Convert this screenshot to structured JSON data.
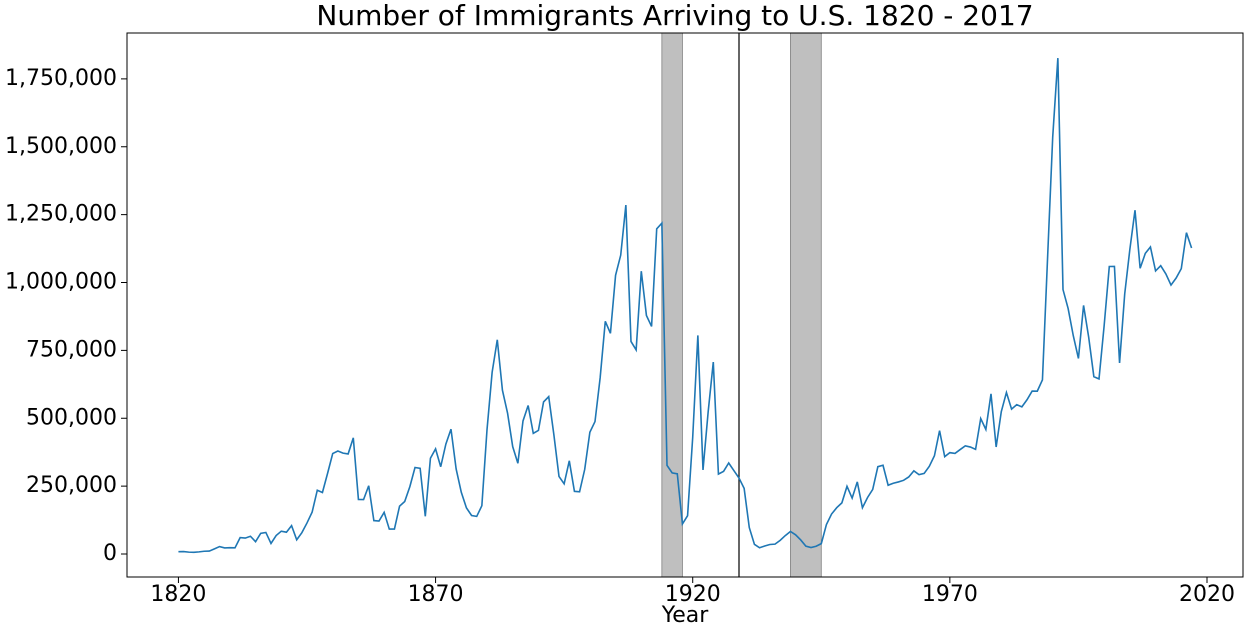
{
  "chart_data": {
    "type": "line",
    "title": "Number of Immigrants Arriving to U.S. 1820 - 2017",
    "xlabel": "Year",
    "color": "#1f77b4",
    "x": [
      1820,
      1821,
      1822,
      1823,
      1824,
      1825,
      1826,
      1827,
      1828,
      1829,
      1830,
      1831,
      1832,
      1833,
      1834,
      1835,
      1836,
      1837,
      1838,
      1839,
      1840,
      1841,
      1842,
      1843,
      1844,
      1845,
      1846,
      1847,
      1848,
      1849,
      1850,
      1851,
      1852,
      1853,
      1854,
      1855,
      1856,
      1857,
      1858,
      1859,
      1860,
      1861,
      1862,
      1863,
      1864,
      1865,
      1866,
      1867,
      1868,
      1869,
      1870,
      1871,
      1872,
      1873,
      1874,
      1875,
      1876,
      1877,
      1878,
      1879,
      1880,
      1881,
      1882,
      1883,
      1884,
      1885,
      1886,
      1887,
      1888,
      1889,
      1890,
      1891,
      1892,
      1893,
      1894,
      1895,
      1896,
      1897,
      1898,
      1899,
      1900,
      1901,
      1902,
      1903,
      1904,
      1905,
      1906,
      1907,
      1908,
      1909,
      1910,
      1911,
      1912,
      1913,
      1914,
      1915,
      1916,
      1917,
      1918,
      1919,
      1920,
      1921,
      1922,
      1923,
      1924,
      1925,
      1926,
      1927,
      1928,
      1929,
      1930,
      1931,
      1932,
      1933,
      1934,
      1935,
      1936,
      1937,
      1938,
      1939,
      1940,
      1941,
      1942,
      1943,
      1944,
      1945,
      1946,
      1947,
      1948,
      1949,
      1950,
      1951,
      1952,
      1953,
      1954,
      1955,
      1956,
      1957,
      1958,
      1959,
      1960,
      1961,
      1962,
      1963,
      1964,
      1965,
      1966,
      1967,
      1968,
      1969,
      1970,
      1971,
      1972,
      1973,
      1974,
      1975,
      1976,
      1977,
      1978,
      1979,
      1980,
      1981,
      1982,
      1983,
      1984,
      1985,
      1986,
      1987,
      1988,
      1989,
      1990,
      1991,
      1992,
      1993,
      1994,
      1995,
      1996,
      1997,
      1998,
      1999,
      2000,
      2001,
      2002,
      2003,
      2004,
      2005,
      2006,
      2007,
      2008,
      2009,
      2010,
      2011,
      2012,
      2013,
      2014,
      2015,
      2016,
      2017
    ],
    "values": [
      8385,
      9127,
      6911,
      6354,
      7912,
      10199,
      10837,
      18875,
      27382,
      22520,
      23322,
      22633,
      60482,
      58640,
      65365,
      45374,
      76242,
      79340,
      38914,
      68069,
      84066,
      80289,
      104565,
      52496,
      78615,
      114371,
      154416,
      234968,
      226527,
      297024,
      369980,
      379466,
      371603,
      368645,
      427833,
      200877,
      200436,
      251306,
      123126,
      121282,
      153640,
      91918,
      91985,
      176282,
      193418,
      248120,
      318568,
      315722,
      138840,
      352768,
      387203,
      321350,
      404806,
      459803,
      313339,
      227498,
      169986,
      141857,
      138469,
      177826,
      457257,
      669431,
      788992,
      603322,
      518592,
      395346,
      334203,
      490109,
      546889,
      444427,
      455302,
      560319,
      579663,
      439730,
      285631,
      258536,
      343267,
      230832,
      229299,
      311715,
      448572,
      487918,
      648743,
      857046,
      812870,
      1026499,
      1100735,
      1285349,
      782870,
      751786,
      1041570,
      878587,
      838172,
      1197892,
      1218480,
      326700,
      298826,
      295403,
      110618,
      141132,
      430001,
      805228,
      309556,
      522919,
      706896,
      294314,
      304488,
      335175,
      307255,
      279678,
      241700,
      97139,
      35576,
      23068,
      29470,
      34956,
      36329,
      50244,
      67895,
      82998,
      70756,
      51776,
      28781,
      23725,
      28551,
      38119,
      108721,
      147292,
      170570,
      188317,
      249187,
      205717,
      265520,
      170434,
      208177,
      237790,
      321625,
      326867,
      253265,
      260686,
      265398,
      271344,
      283763,
      306260,
      292248,
      296697,
      323040,
      361972,
      454448,
      358579,
      373326,
      370478,
      384685,
      398515,
      393919,
      385378,
      499093,
      458755,
      589810,
      394244,
      524295,
      595014,
      533624,
      550052,
      541811,
      568149,
      600027,
      599889,
      641346,
      1090172,
      1535872,
      1826595,
      973977,
      903916,
      803993,
      720177,
      915560,
      797847,
      653206,
      644787,
      841002,
      1058902,
      1059356,
      703542,
      957883,
      1122257,
      1266129,
      1052415,
      1107126,
      1130818,
      1042625,
      1062040,
      1031631,
      990553,
      1016518,
      1051031,
      1183505,
      1127167
    ],
    "xlim": [
      1810,
      2027
    ],
    "xticks": [
      1820,
      1870,
      1920,
      1970,
      2020
    ],
    "ylim": [
      -84700,
      1919000
    ],
    "yticks": [
      0,
      {
        "value": 250000,
        "label": "250,000"
      },
      {
        "value": 500000,
        "label": "500,000"
      },
      {
        "value": 750000,
        "label": "750,000"
      },
      {
        "value": 1000000,
        "label": "1,000,000"
      },
      {
        "value": 1250000,
        "label": "1,250,000"
      },
      {
        "value": 1500000,
        "label": "1,500,000"
      },
      {
        "value": 1750000,
        "label": "1,750,000"
      }
    ],
    "shaded_spans": [
      [
        1914,
        1918
      ],
      [
        1939,
        1945
      ]
    ],
    "span_color": "#bfbfbf",
    "vlines": [
      1929
    ],
    "vline_color": "#000000"
  }
}
